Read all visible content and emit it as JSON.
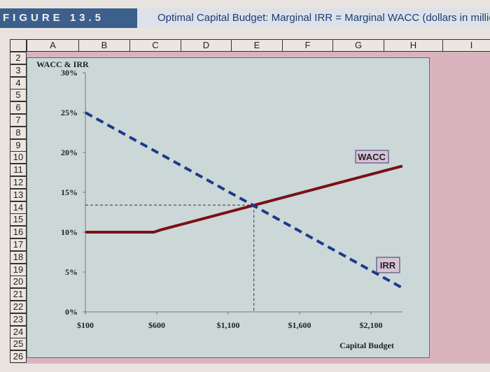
{
  "figure_label": "FIGURE 13.5",
  "title": "Optimal Capital Budget: Marginal IRR = Marginal WACC (dollars in millio",
  "columns": [
    "A",
    "B",
    "C",
    "D",
    "E",
    "F",
    "G",
    "H",
    "I"
  ],
  "rows": [
    "2",
    "3",
    "4",
    "5",
    "6",
    "7",
    "8",
    "9",
    "10",
    "11",
    "12",
    "13",
    "14",
    "15",
    "16",
    "17",
    "18",
    "19",
    "20",
    "21",
    "22",
    "23",
    "24",
    "25",
    "26"
  ],
  "colors": {
    "wacc": "#7a1018",
    "irr": "#1d3a8a",
    "plot_bg": "#ccd8d8",
    "sheet_bg": "#d9b4bf",
    "label_box": "#d8c2d8"
  },
  "chart_data": {
    "type": "line",
    "title": "",
    "ylabel": "WACC & IRR",
    "xlabel": "Capital Budget",
    "xlim": [
      100,
      2330
    ],
    "ylim": [
      0,
      30
    ],
    "x_ticks": [
      100,
      600,
      1100,
      1600,
      2100
    ],
    "x_tick_labels": [
      "$100",
      "$600",
      "$1,100",
      "$1,600",
      "$2,100"
    ],
    "y_ticks": [
      0,
      5,
      10,
      15,
      20,
      25,
      30
    ],
    "y_tick_labels": [
      "0%",
      "5%",
      "10%",
      "15%",
      "20%",
      "25%",
      "30%"
    ],
    "grid": false,
    "series": [
      {
        "name": "WACC",
        "style": "solid",
        "x": [
          100,
          580,
          630,
          2320
        ],
        "y": [
          10,
          10,
          10.3,
          18.3
        ]
      },
      {
        "name": "IRR",
        "style": "dashed",
        "x": [
          100,
          2310
        ],
        "y": [
          25,
          3.1
        ]
      }
    ],
    "intersection": {
      "x": 1280,
      "y": 13.4
    }
  }
}
